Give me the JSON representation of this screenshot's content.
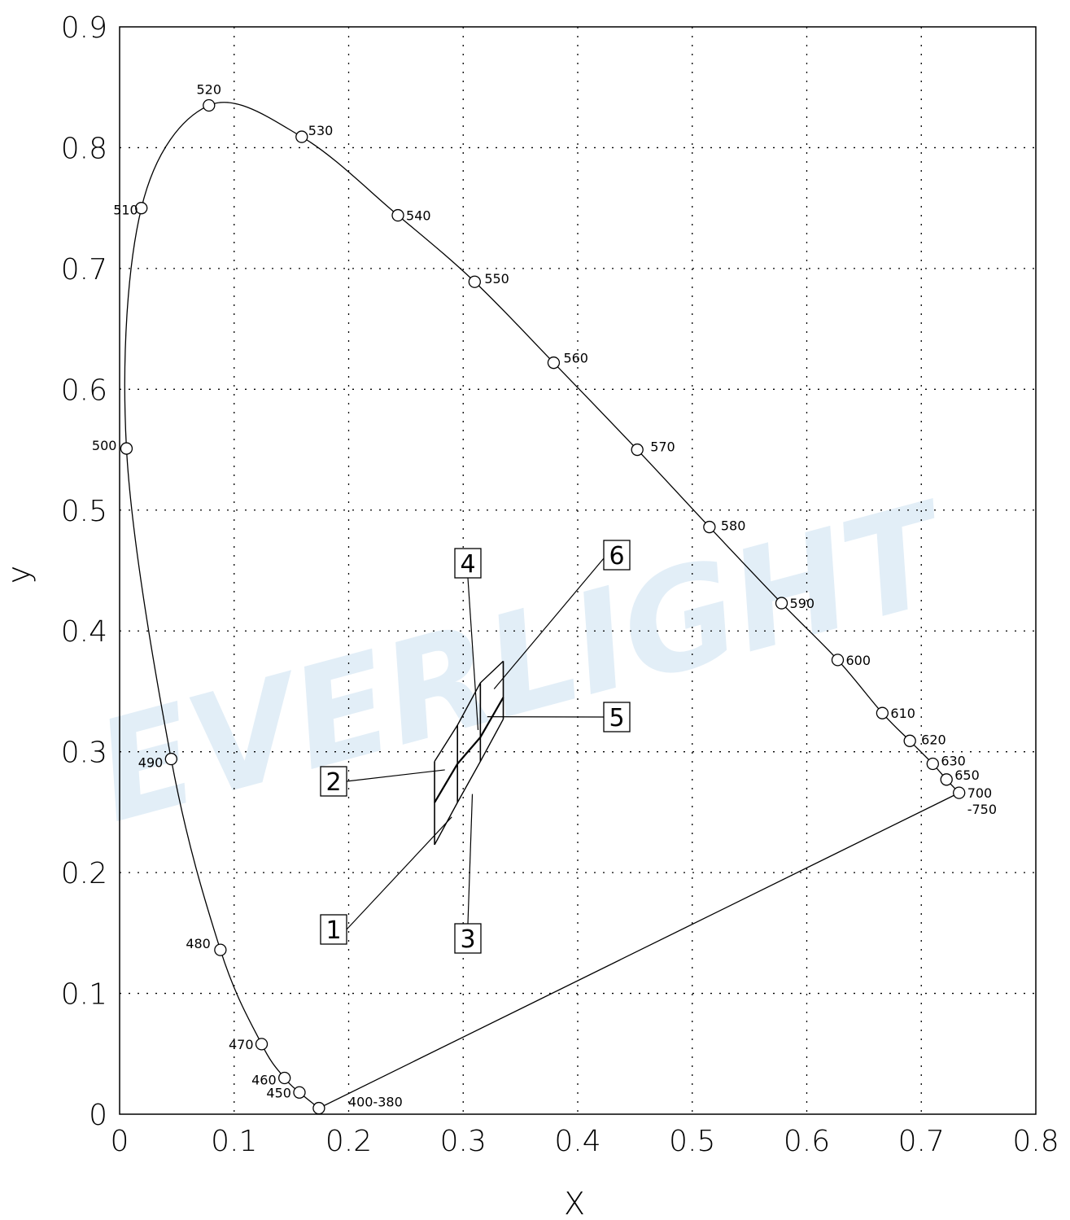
{
  "chart_data": {
    "type": "scatter",
    "xlabel": "X",
    "ylabel": "y",
    "xlim": [
      0,
      0.8
    ],
    "ylim": [
      0,
      0.9
    ],
    "xticks": [
      "0",
      "0.1",
      "0.2",
      "0.3",
      "0.4",
      "0.5",
      "0.6",
      "0.7",
      "0.8"
    ],
    "yticks": [
      "0",
      "0.1",
      "0.2",
      "0.3",
      "0.4",
      "0.5",
      "0.6",
      "0.7",
      "0.8",
      "0.9"
    ],
    "grid": true,
    "watermark": "EVERLIGHT",
    "spectral_locus": [
      {
        "label": "400-380",
        "x": 0.174,
        "y": 0.005
      },
      {
        "label": "450",
        "x": 0.157,
        "y": 0.018
      },
      {
        "label": "460",
        "x": 0.144,
        "y": 0.03
      },
      {
        "label": "470",
        "x": 0.124,
        "y": 0.058
      },
      {
        "label": "480",
        "x": 0.088,
        "y": 0.136
      },
      {
        "label": "490",
        "x": 0.045,
        "y": 0.294
      },
      {
        "label": "500",
        "x": 0.006,
        "y": 0.551
      },
      {
        "label": "510",
        "x": 0.019,
        "y": 0.75
      },
      {
        "label": "520",
        "x": 0.078,
        "y": 0.835
      },
      {
        "label": "530",
        "x": 0.159,
        "y": 0.809
      },
      {
        "label": "540",
        "x": 0.243,
        "y": 0.744
      },
      {
        "label": "550",
        "x": 0.31,
        "y": 0.689
      },
      {
        "label": "560",
        "x": 0.379,
        "y": 0.622
      },
      {
        "label": "570",
        "x": 0.452,
        "y": 0.55
      },
      {
        "label": "580",
        "x": 0.515,
        "y": 0.486
      },
      {
        "label": "590",
        "x": 0.578,
        "y": 0.423
      },
      {
        "label": "600",
        "x": 0.627,
        "y": 0.376
      },
      {
        "label": "610",
        "x": 0.666,
        "y": 0.332
      },
      {
        "label": "620",
        "x": 0.69,
        "y": 0.309
      },
      {
        "label": "630",
        "x": 0.71,
        "y": 0.29
      },
      {
        "label": "650",
        "x": 0.722,
        "y": 0.277
      },
      {
        "label": "700\n-750",
        "x": 0.733,
        "y": 0.266
      }
    ],
    "bins": [
      {
        "label": "1",
        "x": 0.29,
        "y": 0.246
      },
      {
        "label": "2",
        "x": 0.284,
        "y": 0.285
      },
      {
        "label": "3",
        "x": 0.308,
        "y": 0.265
      },
      {
        "label": "4",
        "x": 0.313,
        "y": 0.318
      },
      {
        "label": "5",
        "x": 0.321,
        "y": 0.329
      },
      {
        "label": "6",
        "x": 0.327,
        "y": 0.352
      }
    ],
    "bin_regions": {
      "x_edges": [
        0.275,
        0.295,
        0.315,
        0.335
      ],
      "y_bottom": [
        0.223,
        0.258,
        0.292,
        0.327
      ],
      "y_mid": [
        0.258,
        0.29,
        0.312,
        0.345
      ],
      "y_top": [
        0.292,
        0.322,
        0.357,
        0.375
      ]
    }
  }
}
